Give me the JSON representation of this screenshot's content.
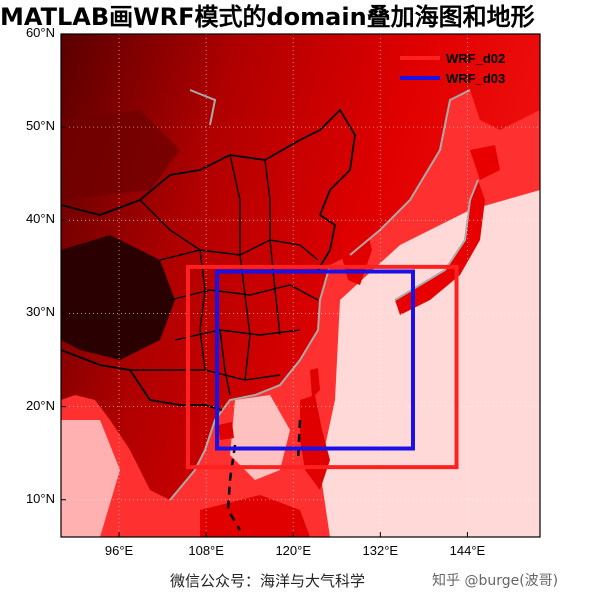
{
  "title": "MATLAB画WRF模式的domain叠加海图和地形",
  "map": {
    "lon_range": [
      88,
      154
    ],
    "lat_range": [
      6,
      60
    ],
    "lon_ticks": [
      {
        "value": 96,
        "label": "96°E"
      },
      {
        "value": 108,
        "label": "108°E"
      },
      {
        "value": 120,
        "label": "120°E"
      },
      {
        "value": 132,
        "label": "132°E"
      },
      {
        "value": 144,
        "label": "144°E"
      }
    ],
    "lat_ticks": [
      {
        "value": 10,
        "label": "10°N"
      },
      {
        "value": 20,
        "label": "20°N"
      },
      {
        "value": 30,
        "label": "30°N"
      },
      {
        "value": 40,
        "label": "40°N"
      },
      {
        "value": 50,
        "label": "50°N"
      },
      {
        "value": 60,
        "label": "60°N"
      }
    ],
    "grid": true,
    "colormap": "red-terrain",
    "colors": {
      "high_land": "#2a0000",
      "land": "#e00000",
      "shallow_sea": "#ff4040",
      "deep_sea": "#ffe0e0",
      "coast": "#aaaaaa",
      "borders": "#000000"
    },
    "domains": [
      {
        "name": "WRF_d02",
        "color": "#ff2020",
        "lon": [
          105.5,
          142.5
        ],
        "lat": [
          13.5,
          35.0
        ]
      },
      {
        "name": "WRF_d03",
        "color": "#1a10e8",
        "lon": [
          109.5,
          136.5
        ],
        "lat": [
          15.5,
          34.5
        ]
      }
    ],
    "legend": {
      "position": "top-right",
      "items": [
        "WRF_d02",
        "WRF_d03"
      ]
    }
  },
  "footer": {
    "wechat": "微信公众号：海洋与大气科学",
    "zhihu": "知乎 @burge(波哥)"
  }
}
